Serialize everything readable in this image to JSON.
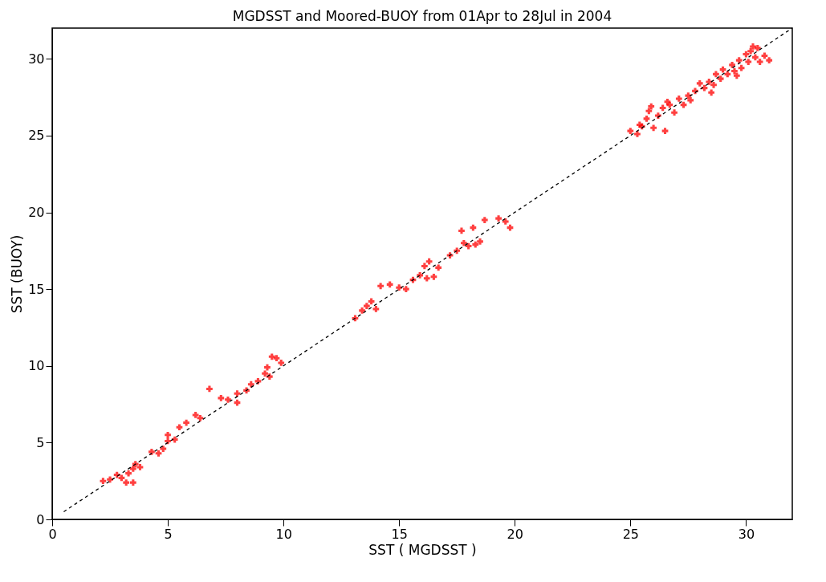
{
  "chart_data": {
    "type": "scatter",
    "title": "MGDSST and Moored-BUOY  from 01Apr to 28Jul in 2004",
    "xlabel": "SST ( MGDSST )",
    "ylabel": "SST (BUOY)",
    "xlim": [
      0,
      32
    ],
    "ylim": [
      0,
      32
    ],
    "xticks": [
      0,
      5,
      10,
      15,
      20,
      25,
      30
    ],
    "yticks": [
      0,
      5,
      10,
      15,
      20,
      25,
      30
    ],
    "grid": false,
    "series": [
      {
        "color": "#ff0000",
        "marker": "cross",
        "x": [
          2.2,
          2.5,
          2.8,
          3.0,
          3.2,
          3.3,
          3.5,
          3.5,
          3.6,
          3.8,
          4.3,
          4.6,
          4.8,
          5.0,
          5.0,
          5.3,
          5.5,
          5.8,
          6.2,
          6.4,
          6.8,
          7.3,
          7.6,
          8.0,
          8.0,
          8.4,
          8.6,
          8.9,
          9.2,
          9.3,
          9.5,
          9.7,
          9.9,
          9.4,
          13.1,
          13.4,
          13.6,
          13.8,
          14.0,
          14.2,
          14.6,
          15.0,
          15.3,
          15.6,
          15.9,
          16.1,
          16.3,
          16.2,
          16.5,
          16.7,
          17.2,
          17.5,
          17.8,
          17.7,
          18.2,
          18.0,
          18.5,
          18.7,
          19.3,
          19.6,
          19.8,
          18.3,
          25.0,
          25.3,
          25.5,
          25.7,
          25.8,
          26.0,
          26.2,
          26.4,
          26.5,
          26.7,
          26.9,
          27.1,
          27.3,
          27.5,
          27.8,
          28.0,
          28.2,
          28.4,
          28.5,
          28.7,
          28.9,
          29.0,
          29.2,
          29.4,
          29.5,
          29.7,
          29.8,
          30.0,
          30.1,
          30.2,
          30.4,
          30.5,
          30.6,
          30.8,
          31.0,
          30.3,
          29.6,
          28.6,
          27.6,
          26.6,
          25.9,
          25.4
        ],
        "values": [
          2.5,
          2.6,
          2.9,
          2.7,
          2.4,
          3.0,
          3.3,
          2.4,
          3.6,
          3.4,
          4.4,
          4.3,
          4.6,
          5.1,
          5.5,
          5.2,
          6.0,
          6.3,
          6.8,
          6.6,
          8.5,
          7.9,
          7.8,
          7.6,
          8.2,
          8.4,
          8.8,
          9.0,
          9.5,
          9.9,
          10.6,
          10.5,
          10.2,
          9.3,
          13.1,
          13.6,
          13.9,
          14.2,
          13.7,
          15.2,
          15.3,
          15.1,
          15.0,
          15.6,
          15.9,
          16.5,
          16.8,
          15.7,
          15.8,
          16.4,
          17.2,
          17.5,
          18.0,
          18.8,
          19.0,
          17.8,
          18.1,
          19.5,
          19.6,
          19.4,
          19.0,
          17.9,
          25.3,
          25.1,
          25.6,
          26.1,
          26.6,
          25.5,
          26.3,
          26.8,
          25.3,
          27.0,
          26.5,
          27.4,
          27.0,
          27.6,
          27.9,
          28.4,
          28.1,
          28.5,
          27.8,
          29.0,
          28.7,
          29.3,
          29.0,
          29.6,
          29.2,
          29.9,
          29.4,
          30.3,
          29.8,
          30.5,
          30.1,
          30.7,
          29.8,
          30.2,
          29.9,
          30.8,
          28.9,
          28.3,
          27.3,
          27.2,
          26.9,
          25.7
        ]
      },
      {
        "type": "line",
        "color": "#000000",
        "line_style": "dashed",
        "marker": "none",
        "x": [
          0.5,
          32
        ],
        "values": [
          0.5,
          32
        ]
      }
    ]
  }
}
